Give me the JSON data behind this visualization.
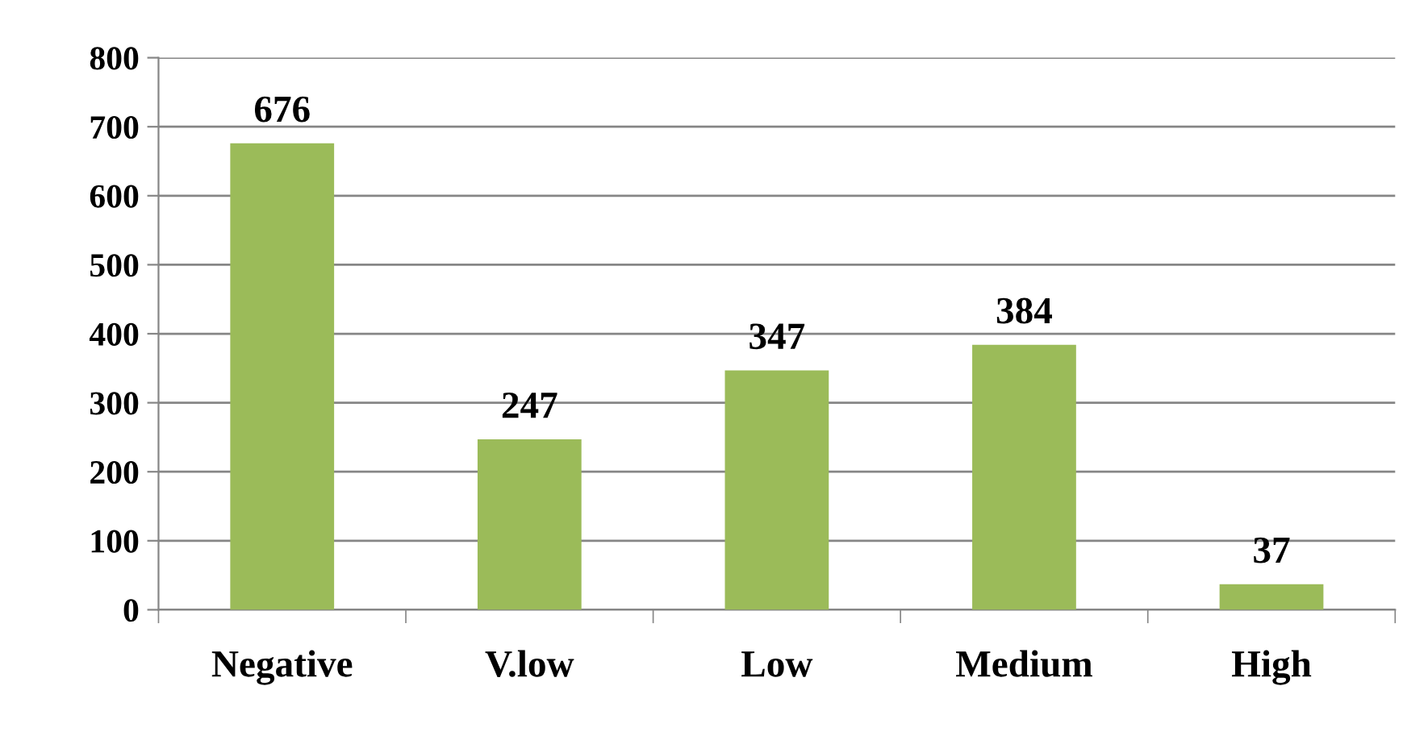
{
  "chart_data": {
    "type": "bar",
    "categories": [
      "Negative",
      "V.low",
      "Low",
      "Medium",
      "High"
    ],
    "values": [
      676,
      247,
      347,
      384,
      37
    ],
    "color": "#9bbb59",
    "ylim": [
      0,
      800
    ],
    "yticks": [
      0,
      100,
      200,
      300,
      400,
      500,
      600,
      700,
      800
    ],
    "grid": "y",
    "data_labels": true,
    "legend": false
  }
}
